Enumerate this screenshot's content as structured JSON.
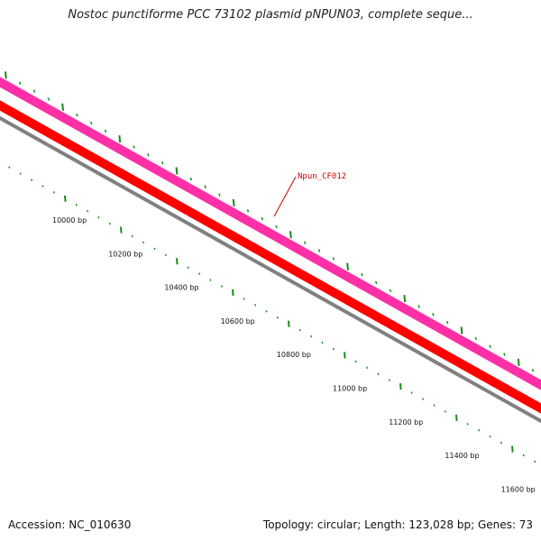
{
  "map": {
    "title": "Nostoc punctiforme PCC 73102 plasmid pNPUN03, complete seque...",
    "accession_text": "Accession: NC_010630",
    "summary_text": "Topology: circular; Length: 123,028 bp; Genes: 73",
    "tick_labels": [
      "10000 bp",
      "10200 bp",
      "10400 bp",
      "10600 bp",
      "10800 bp",
      "11000 bp",
      "11200 bp",
      "11400 bp",
      "11600 bp"
    ],
    "gene_label": "Npun_CF012",
    "colors": {
      "forward_cds": "#ff2fa6",
      "reverse_cds": "#ff0000",
      "backbone": "#808080",
      "gc_skew_ticks": "#1a8a1a",
      "gene_label": "#cc0000"
    }
  }
}
